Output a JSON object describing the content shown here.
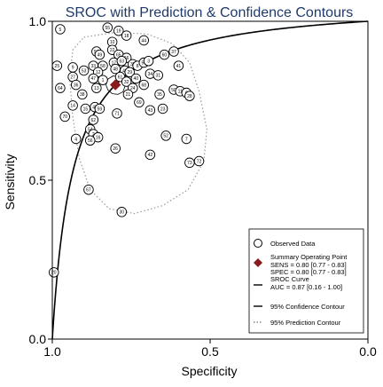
{
  "chart_data": {
    "type": "scatter",
    "title": "SROC with Prediction & Confidence Contours",
    "xlabel": "Specificity",
    "ylabel": "Sensitivity",
    "xlim": [
      1.0,
      0.0
    ],
    "ylim": [
      0.0,
      1.0
    ],
    "x_axis_reversed": true,
    "xticks": [
      "1.0",
      "0.5",
      "0.0"
    ],
    "xtick_values": [
      1.0,
      0.5,
      0.0
    ],
    "yticks": [
      "0.0",
      "0.5",
      "1.0"
    ],
    "ytick_values": [
      0.0,
      0.5,
      1.0
    ],
    "grid": false,
    "legend_position": "bottom-right",
    "summary_point": {
      "specificity": 0.8,
      "sensitivity": 0.8,
      "color": "#8b1a1a"
    },
    "sroc_auc": 0.87,
    "observed_points": [
      {
        "label": "5",
        "specificity": 0.975,
        "sensitivity": 0.975
      },
      {
        "label": "25",
        "specificity": 0.985,
        "sensitivity": 0.86
      },
      {
        "label": "64",
        "specificity": 0.975,
        "sensitivity": 0.79
      },
      {
        "label": "70",
        "specificity": 0.96,
        "sensitivity": 0.7
      },
      {
        "label": "4",
        "specificity": 0.925,
        "sensitivity": 0.63
      },
      {
        "label": "67",
        "specificity": 0.885,
        "sensitivity": 0.47
      },
      {
        "label": "20",
        "specificity": 0.995,
        "sensitivity": 0.21
      },
      {
        "label": "9",
        "specificity": 0.935,
        "sensitivity": 0.855
      },
      {
        "label": "27",
        "specificity": 0.935,
        "sensitivity": 0.825
      },
      {
        "label": "36",
        "specificity": 0.925,
        "sensitivity": 0.8
      },
      {
        "label": "53",
        "specificity": 0.9,
        "sensitivity": 0.845
      },
      {
        "label": "38",
        "specificity": 0.905,
        "sensitivity": 0.77
      },
      {
        "label": "14",
        "specificity": 0.935,
        "sensitivity": 0.735
      },
      {
        "label": "15",
        "specificity": 0.895,
        "sensitivity": 0.725
      },
      {
        "label": "51",
        "specificity": 0.86,
        "sensitivity": 0.905
      },
      {
        "label": "49",
        "specificity": 0.85,
        "sensitivity": 0.895
      },
      {
        "label": "33",
        "specificity": 0.87,
        "sensitivity": 0.86
      },
      {
        "label": "58",
        "specificity": 0.84,
        "sensitivity": 0.86
      },
      {
        "label": "12",
        "specificity": 0.855,
        "sensitivity": 0.84
      },
      {
        "label": "47",
        "specificity": 0.87,
        "sensitivity": 0.82
      },
      {
        "label": "1",
        "specificity": 0.84,
        "sensitivity": 0.815
      },
      {
        "label": "13",
        "specificity": 0.86,
        "sensitivity": 0.79
      },
      {
        "label": "45",
        "specificity": 0.865,
        "sensitivity": 0.73
      },
      {
        "label": "59",
        "specificity": 0.85,
        "sensitivity": 0.725
      },
      {
        "label": "62",
        "specificity": 0.87,
        "sensitivity": 0.69
      },
      {
        "label": "54",
        "specificity": 0.88,
        "sensitivity": 0.66
      },
      {
        "label": "2",
        "specificity": 0.87,
        "sensitivity": 0.645
      },
      {
        "label": "16",
        "specificity": 0.855,
        "sensitivity": 0.635
      },
      {
        "label": "56",
        "specificity": 0.88,
        "sensitivity": 0.625
      },
      {
        "label": "26",
        "specificity": 0.8,
        "sensitivity": 0.6
      },
      {
        "label": "30",
        "specificity": 0.78,
        "sensitivity": 0.4
      },
      {
        "label": "55",
        "specificity": 0.825,
        "sensitivity": 0.98
      },
      {
        "label": "19",
        "specificity": 0.79,
        "sensitivity": 0.97
      },
      {
        "label": "18",
        "specificity": 0.765,
        "sensitivity": 0.955
      },
      {
        "label": "44",
        "specificity": 0.71,
        "sensitivity": 0.94
      },
      {
        "label": "10",
        "specificity": 0.81,
        "sensitivity": 0.935
      },
      {
        "label": "22",
        "specificity": 0.81,
        "sensitivity": 0.91
      },
      {
        "label": "65",
        "specificity": 0.79,
        "sensitivity": 0.895
      },
      {
        "label": "66",
        "specificity": 0.765,
        "sensitivity": 0.885
      },
      {
        "label": "17",
        "specificity": 0.805,
        "sensitivity": 0.87
      },
      {
        "label": "63",
        "specificity": 0.78,
        "sensitivity": 0.875
      },
      {
        "label": "39",
        "specificity": 0.745,
        "sensitivity": 0.865
      },
      {
        "label": "48",
        "specificity": 0.8,
        "sensitivity": 0.85
      },
      {
        "label": "46",
        "specificity": 0.77,
        "sensitivity": 0.845
      },
      {
        "label": "29",
        "specificity": 0.755,
        "sensitivity": 0.84
      },
      {
        "label": "8",
        "specificity": 0.73,
        "sensitivity": 0.86
      },
      {
        "label": "57",
        "specificity": 0.71,
        "sensitivity": 0.87
      },
      {
        "label": "3",
        "specificity": 0.695,
        "sensitivity": 0.875
      },
      {
        "label": "60",
        "specificity": 0.645,
        "sensitivity": 0.895
      },
      {
        "label": "37",
        "specificity": 0.615,
        "sensitivity": 0.905
      },
      {
        "label": "41",
        "specificity": 0.6,
        "sensitivity": 0.86
      },
      {
        "label": "61",
        "specificity": 0.785,
        "sensitivity": 0.825
      },
      {
        "label": "40",
        "specificity": 0.735,
        "sensitivity": 0.82
      },
      {
        "label": "32",
        "specificity": 0.765,
        "sensitivity": 0.81
      },
      {
        "label": "24",
        "specificity": 0.745,
        "sensitivity": 0.79
      },
      {
        "label": "68",
        "specificity": 0.71,
        "sensitivity": 0.8
      },
      {
        "label": "34",
        "specificity": 0.69,
        "sensitivity": 0.835
      },
      {
        "label": "31",
        "specificity": 0.665,
        "sensitivity": 0.83
      },
      {
        "label": "21",
        "specificity": 0.76,
        "sensitivity": 0.77
      },
      {
        "label": "69",
        "specificity": 0.725,
        "sensitivity": 0.745
      },
      {
        "label": "43",
        "specificity": 0.69,
        "sensitivity": 0.72
      },
      {
        "label": "23",
        "specificity": 0.65,
        "sensitivity": 0.725
      },
      {
        "label": "35",
        "specificity": 0.66,
        "sensitivity": 0.77
      },
      {
        "label": "50",
        "specificity": 0.615,
        "sensitivity": 0.785
      },
      {
        "label": "11",
        "specificity": 0.595,
        "sensitivity": 0.78
      },
      {
        "label": "6",
        "specificity": 0.575,
        "sensitivity": 0.775
      },
      {
        "label": "28",
        "specificity": 0.565,
        "sensitivity": 0.765
      },
      {
        "label": "71",
        "specificity": 0.795,
        "sensitivity": 0.71
      },
      {
        "label": "52",
        "specificity": 0.64,
        "sensitivity": 0.64
      },
      {
        "label": "42",
        "specificity": 0.69,
        "sensitivity": 0.58
      },
      {
        "label": "7",
        "specificity": 0.575,
        "sensitivity": 0.63
      },
      {
        "label": "73",
        "specificity": 0.565,
        "sensitivity": 0.555
      },
      {
        "label": "72",
        "specificity": 0.535,
        "sensitivity": 0.56
      }
    ],
    "confidence_contour": [
      {
        "specificity": 0.83,
        "sensitivity": 0.8
      },
      {
        "specificity": 0.824,
        "sensitivity": 0.818
      },
      {
        "specificity": 0.808,
        "sensitivity": 0.828
      },
      {
        "specificity": 0.79,
        "sensitivity": 0.826
      },
      {
        "specificity": 0.776,
        "sensitivity": 0.812
      },
      {
        "specificity": 0.77,
        "sensitivity": 0.795
      },
      {
        "specificity": 0.776,
        "sensitivity": 0.778
      },
      {
        "specificity": 0.792,
        "sensitivity": 0.77
      },
      {
        "specificity": 0.81,
        "sensitivity": 0.772
      },
      {
        "specificity": 0.824,
        "sensitivity": 0.784
      }
    ],
    "prediction_contour": [
      {
        "specificity": 0.9,
        "sensitivity": 0.95
      },
      {
        "specificity": 0.8,
        "sensitivity": 0.965
      },
      {
        "specificity": 0.7,
        "sensitivity": 0.96
      },
      {
        "specificity": 0.62,
        "sensitivity": 0.93
      },
      {
        "specificity": 0.565,
        "sensitivity": 0.87
      },
      {
        "specificity": 0.535,
        "sensitivity": 0.78
      },
      {
        "specificity": 0.51,
        "sensitivity": 0.66
      },
      {
        "specificity": 0.52,
        "sensitivity": 0.56
      },
      {
        "specificity": 0.57,
        "sensitivity": 0.47
      },
      {
        "specificity": 0.65,
        "sensitivity": 0.42
      },
      {
        "specificity": 0.74,
        "sensitivity": 0.395
      },
      {
        "specificity": 0.82,
        "sensitivity": 0.41
      },
      {
        "specificity": 0.88,
        "sensitivity": 0.47
      },
      {
        "specificity": 0.915,
        "sensitivity": 0.57
      },
      {
        "specificity": 0.935,
        "sensitivity": 0.7
      },
      {
        "specificity": 0.945,
        "sensitivity": 0.82
      },
      {
        "specificity": 0.935,
        "sensitivity": 0.91
      }
    ],
    "legend": [
      {
        "marker": "circle",
        "text": "Observed Data"
      },
      {
        "marker": "diamond",
        "text": "Summary Operating Point",
        "subtext": [
          "SENS = 0.80 [0.77 - 0.83]",
          "SPEC = 0.80 [0.77 - 0.83]"
        ]
      },
      {
        "marker": "solid-line",
        "text": "SROC Curve",
        "subtext": [
          "AUC = 0.87 [0.16 - 1.00]"
        ]
      },
      {
        "marker": "solid-line",
        "text": "95% Confidence Contour"
      },
      {
        "marker": "dotted-line",
        "text": "95% Prediction Contour"
      }
    ]
  }
}
